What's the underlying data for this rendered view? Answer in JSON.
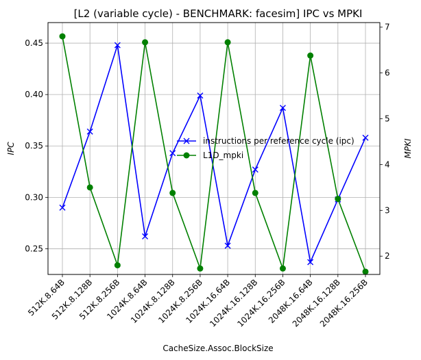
{
  "chart_data": {
    "type": "line",
    "title": "[L2 (variable cycle) - BENCHMARK: facesim]  IPC vs MPKI",
    "xlabel": "CacheSize.Assoc.BlockSize",
    "ylabel_left": "IPC",
    "ylabel_right": "MPKI",
    "categories": [
      "512K.8.64B",
      "512K.8.128B",
      "512K.8.256B",
      "1024K.8.64B",
      "1024K.8.128B",
      "1024K.8.256B",
      "1024K.16.64B",
      "1024K.16.128B",
      "1024K.16.256B",
      "2048K.16.64B",
      "2048K.16.128B",
      "2048K.16.256B"
    ],
    "ylim_left": [
      0.225,
      0.47
    ],
    "yticks_left": [
      "0.25",
      "0.30",
      "0.35",
      "0.40",
      "0.45"
    ],
    "ylim_right": [
      1.6,
      7.1
    ],
    "yticks_right": [
      "2",
      "3",
      "4",
      "5",
      "6",
      "7"
    ],
    "grid": true,
    "legend_position": "center-right",
    "series": [
      {
        "name": "instructions per reference cycle (ipc)",
        "axis": "left",
        "color": "#0000ff",
        "marker": "x",
        "values": [
          0.29,
          0.364,
          0.448,
          0.262,
          0.343,
          0.399,
          0.253,
          0.327,
          0.387,
          0.237,
          0.298,
          0.358
        ]
      },
      {
        "name": "L1D_mpki",
        "axis": "right",
        "color": "#008000",
        "marker": "o",
        "values": [
          6.8,
          3.5,
          1.8,
          6.67,
          3.38,
          1.73,
          6.67,
          3.38,
          1.73,
          6.38,
          3.25,
          1.66
        ]
      }
    ]
  }
}
